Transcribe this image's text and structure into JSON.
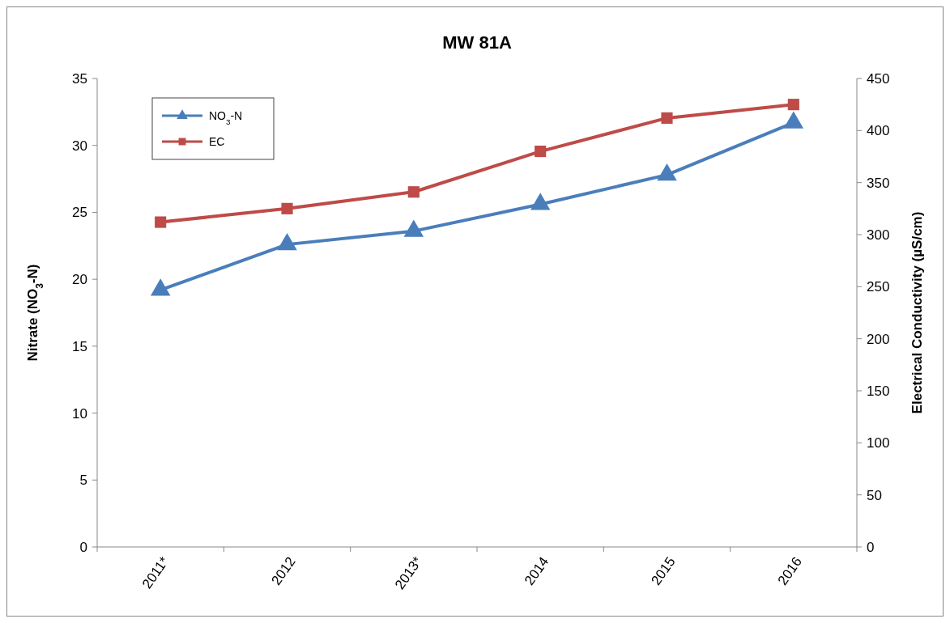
{
  "chart_data": {
    "type": "line",
    "title": "MW 81A",
    "ylabel": "Nitrate (NO$_{3}$-N)",
    "y2label": "Electrical Conductivity (µS/cm)",
    "categories": [
      "2011*",
      "2012",
      "2013*",
      "2014",
      "2015",
      "2016"
    ],
    "series": [
      {
        "name": "NO$_{3}$-N",
        "color": "#4a7ebb",
        "marker": "triangle",
        "values": [
          19.2,
          22.6,
          23.6,
          25.6,
          27.8,
          31.7
        ]
      },
      {
        "name": "EC",
        "color": "#be4b48",
        "marker": "square",
        "axis": "y2",
        "values": [
          312,
          325,
          341,
          380,
          412,
          425
        ]
      }
    ],
    "ylim": [
      0,
      35
    ],
    "yticks": [
      0,
      5,
      10,
      15,
      20,
      25,
      30,
      35
    ],
    "y2lim": [
      0,
      450
    ],
    "y2ticks": [
      0,
      50,
      100,
      150,
      200,
      250,
      300,
      350,
      400,
      450
    ],
    "grid": false,
    "legend": "top left",
    "line_style": "solid"
  }
}
